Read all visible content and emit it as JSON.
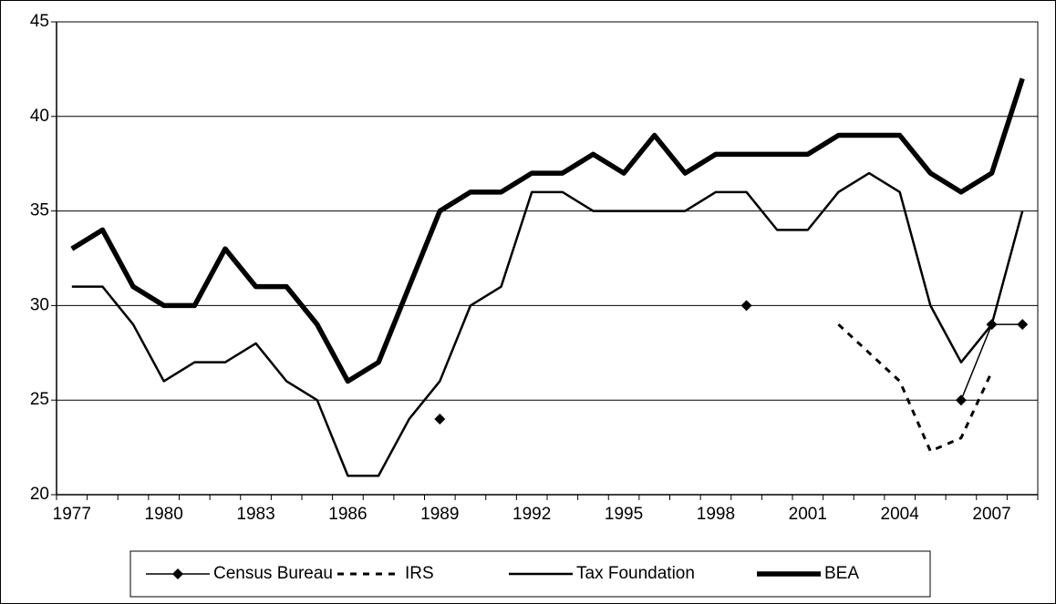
{
  "chart_data": {
    "type": "line",
    "categories": [
      "1977",
      null,
      null,
      "1980",
      null,
      null,
      "1983",
      null,
      null,
      "1986",
      null,
      null,
      "1989",
      null,
      null,
      "1992",
      null,
      null,
      "1995",
      null,
      null,
      "1998",
      null,
      null,
      "2001",
      null,
      null,
      "2004",
      null,
      null,
      "2007",
      null
    ],
    "series": [
      {
        "name": "Census Bureau",
        "color": "#000000",
        "line_width": 1.5,
        "dash": "none",
        "marker": "diamond",
        "values": [
          null,
          null,
          null,
          null,
          null,
          null,
          null,
          null,
          null,
          null,
          null,
          null,
          24,
          null,
          null,
          null,
          null,
          null,
          null,
          null,
          null,
          null,
          30,
          null,
          null,
          null,
          null,
          null,
          null,
          25,
          29,
          29
        ]
      },
      {
        "name": "IRS",
        "color": "#000000",
        "line_width": 3,
        "dash": "7 7",
        "marker": "none",
        "values": [
          null,
          null,
          null,
          null,
          null,
          null,
          null,
          null,
          null,
          null,
          null,
          null,
          null,
          null,
          null,
          null,
          null,
          null,
          null,
          null,
          null,
          null,
          null,
          null,
          null,
          29,
          27.5,
          26,
          22.3,
          23,
          26.5,
          null
        ]
      },
      {
        "name": "Tax Foundation",
        "color": "#000000",
        "line_width": 2.5,
        "dash": "none",
        "marker": "none",
        "values": [
          31,
          31,
          29,
          26,
          27,
          27,
          28,
          26,
          25,
          21,
          21,
          24,
          26,
          30,
          31,
          36,
          36,
          35,
          35,
          35,
          35,
          36,
          36,
          34,
          34,
          36,
          37,
          36,
          30,
          27,
          29,
          35
        ]
      },
      {
        "name": "BEA",
        "color": "#000000",
        "line_width": 5.5,
        "dash": "none",
        "marker": "none",
        "values": [
          33,
          34,
          31,
          30,
          30,
          33,
          31,
          31,
          29,
          26,
          27,
          31,
          35,
          36,
          36,
          37,
          37,
          38,
          37,
          39,
          37,
          38,
          38,
          38,
          38,
          39,
          39,
          39,
          37,
          36,
          37,
          42
        ]
      }
    ],
    "ylim": [
      20,
      45
    ],
    "yticks": [
      20,
      25,
      30,
      35,
      40,
      45
    ],
    "grid": true,
    "legend": "bottom"
  }
}
